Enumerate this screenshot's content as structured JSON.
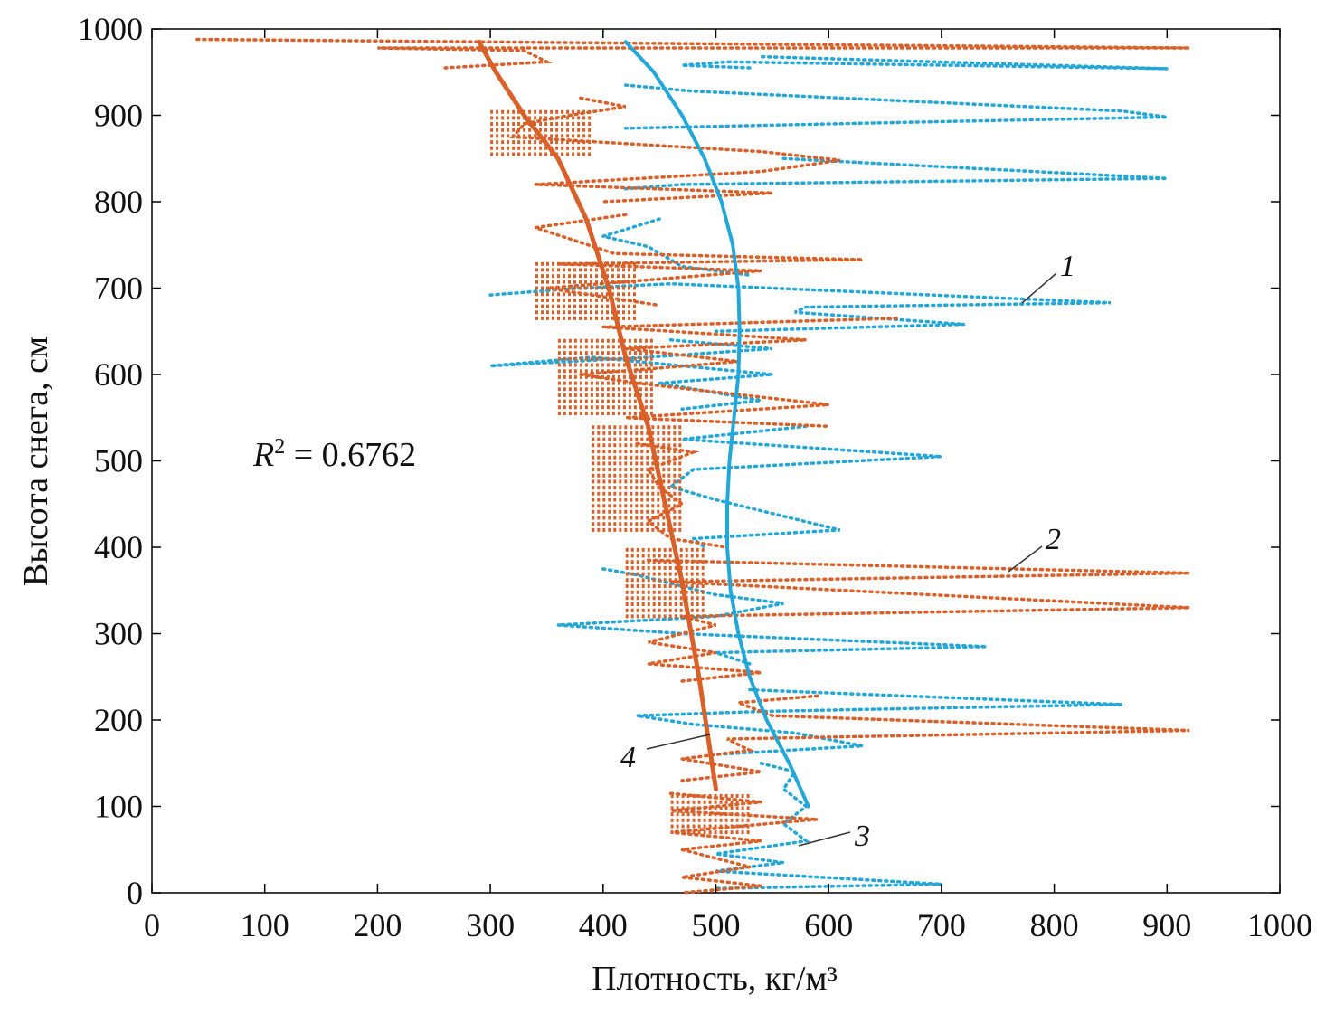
{
  "chart_data": {
    "type": "scatter",
    "xlabel": "Плотность, кг/м³",
    "ylabel": "Высота снега, см",
    "xlim": [
      0,
      1000
    ],
    "ylim": [
      0,
      1000
    ],
    "xticks": [
      "0",
      "100",
      "200",
      "300",
      "400",
      "500",
      "600",
      "700",
      "800",
      "900",
      "1000"
    ],
    "yticks": [
      "0",
      "100",
      "200",
      "300",
      "400",
      "500",
      "600",
      "700",
      "800",
      "900",
      "1000"
    ],
    "grid": false,
    "annotation_r2": {
      "prefix": "R",
      "sup": "2",
      "suffix": " = 0.6762"
    },
    "series_labels": [
      "1",
      "2",
      "3",
      "4"
    ],
    "colors": {
      "blue": "#22a7d8",
      "orange": "#d96028"
    },
    "blue_dotted": [
      [
        [
          530,
          955
        ],
        [
          470,
          958
        ],
        [
          510,
          962
        ],
        [
          900,
          954
        ],
        [
          540,
          968
        ]
      ],
      [
        [
          420,
          935
        ],
        [
          480,
          928
        ],
        [
          860,
          905
        ],
        [
          900,
          898
        ],
        [
          600,
          890
        ],
        [
          420,
          885
        ]
      ],
      [
        [
          560,
          850
        ],
        [
          900,
          827
        ],
        [
          470,
          820
        ],
        [
          420,
          815
        ]
      ],
      [
        [
          450,
          780
        ],
        [
          400,
          760
        ],
        [
          440,
          748
        ],
        [
          470,
          725
        ],
        [
          530,
          715
        ]
      ],
      [
        [
          300,
          692
        ],
        [
          380,
          700
        ],
        [
          460,
          705
        ],
        [
          850,
          683
        ],
        [
          580,
          678
        ],
        [
          570,
          672
        ],
        [
          720,
          658
        ],
        [
          500,
          650
        ]
      ],
      [
        [
          460,
          640
        ],
        [
          550,
          630
        ],
        [
          440,
          620
        ],
        [
          300,
          610
        ],
        [
          390,
          620
        ],
        [
          550,
          600
        ],
        [
          450,
          590
        ],
        [
          540,
          570
        ],
        [
          470,
          560
        ]
      ],
      [
        [
          580,
          540
        ],
        [
          470,
          525
        ],
        [
          700,
          505
        ],
        [
          480,
          490
        ],
        [
          460,
          470
        ],
        [
          500,
          455
        ],
        [
          610,
          420
        ],
        [
          480,
          410
        ],
        [
          490,
          400
        ]
      ],
      [
        [
          400,
          375
        ],
        [
          430,
          368
        ],
        [
          500,
          345
        ],
        [
          560,
          335
        ],
        [
          500,
          320
        ],
        [
          360,
          310
        ],
        [
          470,
          300
        ],
        [
          740,
          285
        ],
        [
          500,
          278
        ],
        [
          530,
          265
        ]
      ],
      [
        [
          530,
          235
        ],
        [
          860,
          218
        ],
        [
          540,
          210
        ],
        [
          430,
          205
        ],
        [
          480,
          195
        ],
        [
          570,
          185
        ],
        [
          630,
          170
        ],
        [
          500,
          160
        ]
      ],
      [
        [
          540,
          150
        ],
        [
          570,
          140
        ],
        [
          560,
          120
        ],
        [
          580,
          100
        ],
        [
          560,
          80
        ],
        [
          580,
          60
        ],
        [
          500,
          45
        ],
        [
          560,
          35
        ],
        [
          500,
          25
        ],
        [
          700,
          10
        ],
        [
          500,
          5
        ]
      ]
    ],
    "orange_dotted": [
      [
        [
          40,
          988
        ],
        [
          300,
          985
        ],
        [
          920,
          978
        ],
        [
          200,
          978
        ],
        [
          330,
          975
        ],
        [
          350,
          962
        ],
        [
          260,
          955
        ]
      ],
      [
        [
          380,
          920
        ],
        [
          420,
          910
        ],
        [
          370,
          900
        ],
        [
          330,
          890
        ],
        [
          320,
          875
        ],
        [
          540,
          858
        ],
        [
          610,
          848
        ],
        [
          540,
          835
        ],
        [
          340,
          820
        ],
        [
          550,
          810
        ],
        [
          400,
          800
        ]
      ],
      [
        [
          420,
          785
        ],
        [
          340,
          770
        ],
        [
          410,
          740
        ],
        [
          630,
          733
        ],
        [
          360,
          728
        ],
        [
          540,
          720
        ],
        [
          350,
          700
        ],
        [
          450,
          680
        ]
      ],
      [
        [
          660,
          665
        ],
        [
          400,
          655
        ],
        [
          580,
          640
        ],
        [
          420,
          630
        ],
        [
          520,
          615
        ],
        [
          380,
          600
        ],
        [
          430,
          590
        ],
        [
          600,
          565
        ],
        [
          420,
          550
        ],
        [
          600,
          540
        ]
      ],
      [
        [
          430,
          520
        ],
        [
          480,
          510
        ],
        [
          440,
          490
        ],
        [
          450,
          470
        ],
        [
          470,
          450
        ],
        [
          440,
          430
        ],
        [
          460,
          410
        ],
        [
          510,
          400
        ]
      ],
      [
        [
          440,
          385
        ],
        [
          920,
          370
        ],
        [
          460,
          360
        ],
        [
          920,
          330
        ],
        [
          470,
          320
        ],
        [
          500,
          310
        ],
        [
          440,
          290
        ],
        [
          500,
          278
        ],
        [
          440,
          265
        ],
        [
          540,
          255
        ],
        [
          470,
          245
        ]
      ],
      [
        [
          590,
          228
        ],
        [
          520,
          220
        ],
        [
          550,
          205
        ],
        [
          920,
          188
        ],
        [
          510,
          178
        ],
        [
          530,
          165
        ],
        [
          470,
          155
        ],
        [
          540,
          140
        ],
        [
          470,
          130
        ]
      ],
      [
        [
          460,
          115
        ],
        [
          540,
          105
        ],
        [
          460,
          95
        ],
        [
          590,
          85
        ],
        [
          460,
          70
        ],
        [
          540,
          60
        ],
        [
          470,
          50
        ],
        [
          530,
          30
        ],
        [
          470,
          18
        ],
        [
          540,
          8
        ],
        [
          470,
          0
        ]
      ]
    ],
    "orange_thick_bands": [
      {
        "y": [
          855,
          905
        ],
        "x": [
          300,
          390
        ]
      },
      {
        "y": [
          665,
          730
        ],
        "x": [
          340,
          430
        ]
      },
      {
        "y": [
          555,
          640
        ],
        "x": [
          360,
          445
        ]
      },
      {
        "y": [
          420,
          540
        ],
        "x": [
          390,
          470
        ]
      },
      {
        "y": [
          320,
          400
        ],
        "x": [
          420,
          490
        ]
      },
      {
        "y": [
          70,
          115
        ],
        "x": [
          460,
          530
        ]
      }
    ],
    "curve_3_blue": {
      "x": [
        420,
        445,
        470,
        490,
        505,
        515,
        520,
        521,
        520,
        516,
        512,
        510,
        510,
        513,
        520,
        530,
        545,
        565,
        582
      ],
      "y": [
        985,
        950,
        900,
        850,
        800,
        750,
        700,
        650,
        600,
        550,
        500,
        450,
        400,
        350,
        300,
        250,
        200,
        150,
        100
      ]
    },
    "curve_4_orange": {
      "x": [
        290,
        305,
        330,
        360,
        385,
        405,
        420,
        440,
        455,
        470,
        485,
        500
      ],
      "y": [
        985,
        950,
        900,
        850,
        780,
        700,
        620,
        540,
        450,
        360,
        250,
        120
      ]
    }
  }
}
